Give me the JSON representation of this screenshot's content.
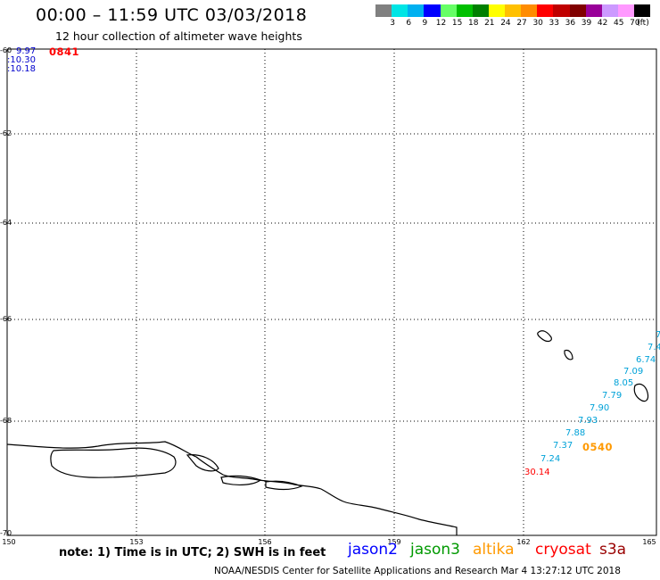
{
  "header": {
    "title": "00:00 – 11:59 UTC 03/03/2018",
    "subtitle": "12 hour collection of altimeter wave heights"
  },
  "colorbar": {
    "colors": [
      "#808080",
      "#00e5e5",
      "#00b0f0",
      "#0000ff",
      "#66ff66",
      "#00c000",
      "#008000",
      "#ffff00",
      "#ffc000",
      "#ff8c00",
      "#ff0000",
      "#c00000",
      "#800000",
      "#990099",
      "#cc99ff",
      "#ff99ff",
      "#000000"
    ],
    "ticks": [
      "3",
      "6",
      "9",
      "12",
      "15",
      "18",
      "21",
      "24",
      "27",
      "30",
      "33",
      "36",
      "39",
      "42",
      "45",
      "70",
      "(ft)"
    ]
  },
  "map": {
    "lat_labels": [
      "-60",
      "-62",
      "-64",
      "-66",
      "-68",
      "-70"
    ],
    "lon_labels": [
      "150",
      "153",
      "156",
      "159",
      "162",
      "165"
    ]
  },
  "labels": {
    "top_left_values": [
      "9.97",
      ":10.30",
      ":10.18"
    ],
    "time_0841": "0841",
    "time_0540": "0540",
    "red_value": "30.14"
  },
  "wave_values": [
    "7.4",
    "6.74",
    "7.09",
    "8.05",
    "7.79",
    "7.90",
    "7.93",
    "7.88",
    "7.37",
    "7.24"
  ],
  "legend": {
    "note": "note: 1) Time is in UTC; 2) SWH is in feet",
    "satellites": [
      {
        "name": "jason2",
        "color": "#0000ff"
      },
      {
        "name": "jason3",
        "color": "#009900"
      },
      {
        "name": "altika",
        "color": "#ff9900"
      },
      {
        "name": "cryosat",
        "color": "#ff0000"
      },
      {
        "name": "s3a",
        "color": "#990000"
      }
    ]
  },
  "footer": "NOAA/NESDIS Center for Satellite Applications and Research    Mar  4 13:27:12 UTC 2018"
}
